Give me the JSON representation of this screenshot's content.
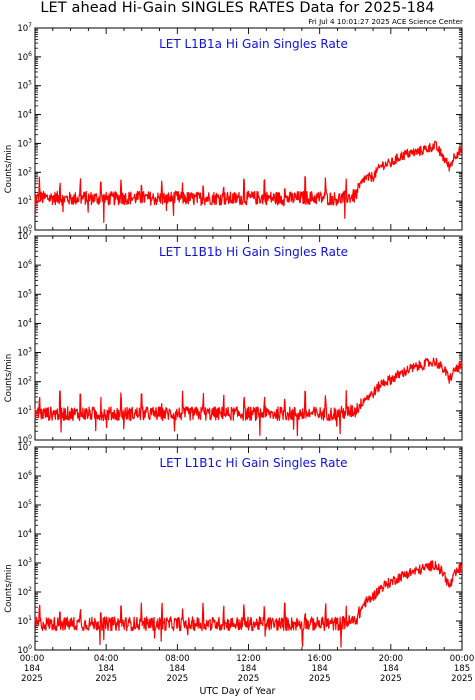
{
  "page": {
    "title": "LET ahead Hi-Gain SINGLES RATES Data for 2025-184",
    "timestamp": "Fri Jul  4 10:01:27 2025 ACE Science Center",
    "xlabel": "UTC Day of Year"
  },
  "colors": {
    "trace": "#ff0000",
    "panel_title": "#1010e0",
    "axis": "#000000"
  },
  "chart_data": [
    {
      "type": "line",
      "title": "LET L1B1a Hi Gain Singles Rate",
      "ylabel": "Counts/min",
      "yscale": "log",
      "ylim": [
        1,
        10000000
      ],
      "xlim": [
        0,
        24
      ],
      "y_tick_exponents": [
        0,
        1,
        2,
        3,
        4,
        5,
        6,
        7
      ],
      "x_tick_labels": [],
      "series": [
        {
          "x": [
            0,
            1,
            2,
            3,
            4,
            5,
            6,
            7,
            8,
            9,
            10,
            11,
            12,
            13,
            14,
            15,
            16,
            17,
            18,
            18.5,
            19,
            19.5,
            20,
            20.5,
            21,
            21.5,
            22,
            22.5,
            23,
            23.3,
            23.6,
            24
          ],
          "y": [
            13,
            13,
            12,
            13,
            12,
            13,
            13,
            12,
            13,
            12,
            13,
            12,
            13,
            13,
            12,
            13,
            13,
            12,
            15,
            60,
            70,
            180,
            200,
            350,
            450,
            500,
            650,
            850,
            300,
            150,
            400,
            600
          ]
        }
      ]
    },
    {
      "type": "line",
      "title": "LET L1B1b Hi Gain Singles Rate",
      "ylabel": "Counts/min",
      "yscale": "log",
      "ylim": [
        1,
        10000000
      ],
      "xlim": [
        0,
        24
      ],
      "y_tick_exponents": [
        0,
        1,
        2,
        3,
        4,
        5,
        6,
        7
      ],
      "x_tick_labels": [],
      "series": [
        {
          "x": [
            0,
            1,
            2,
            3,
            4,
            5,
            6,
            7,
            8,
            9,
            10,
            11,
            12,
            13,
            14,
            15,
            16,
            17,
            18,
            18.5,
            19,
            19.5,
            20,
            20.5,
            21,
            21.5,
            22,
            22.5,
            23,
            23.3,
            23.6,
            24
          ],
          "y": [
            8,
            8,
            8,
            8,
            8,
            8,
            8,
            8,
            8,
            8,
            8,
            8,
            8,
            8,
            8,
            8,
            8,
            8,
            10,
            25,
            40,
            90,
            120,
            180,
            260,
            330,
            420,
            500,
            250,
            120,
            260,
            380
          ]
        }
      ]
    },
    {
      "type": "line",
      "title": "LET L1B1c Hi Gain Singles Rate",
      "ylabel": "Counts/min",
      "yscale": "log",
      "ylim": [
        1,
        10000000
      ],
      "xlim": [
        0,
        24
      ],
      "y_tick_exponents": [
        0,
        1,
        2,
        3,
        4,
        5,
        6,
        7
      ],
      "x_tick_labels": [
        {
          "x": 0,
          "time": "00:00",
          "day": "184",
          "year": "2025"
        },
        {
          "x": 4,
          "time": "04:00",
          "day": "184",
          "year": "2025"
        },
        {
          "x": 8,
          "time": "08:00",
          "day": "184",
          "year": "2025"
        },
        {
          "x": 12,
          "time": "12:00",
          "day": "184",
          "year": "2025"
        },
        {
          "x": 16,
          "time": "16:00",
          "day": "184",
          "year": "2025"
        },
        {
          "x": 20,
          "time": "20:00",
          "day": "184",
          "year": "2025"
        },
        {
          "x": 24,
          "time": "00:00",
          "day": "185",
          "year": "2025"
        }
      ],
      "series": [
        {
          "x": [
            0,
            1,
            2,
            3,
            4,
            5,
            6,
            7,
            8,
            9,
            10,
            11,
            12,
            13,
            14,
            15,
            16,
            17,
            18,
            18.5,
            19,
            19.5,
            20,
            20.5,
            21,
            21.5,
            22,
            22.5,
            23,
            23.3,
            23.6,
            24
          ],
          "y": [
            8,
            8,
            8,
            8,
            8,
            8,
            8,
            8,
            8,
            8,
            8,
            8,
            8,
            8,
            8,
            8,
            8,
            8,
            10,
            40,
            70,
            150,
            220,
            330,
            450,
            550,
            700,
            900,
            400,
            150,
            400,
            750
          ]
        }
      ]
    }
  ]
}
